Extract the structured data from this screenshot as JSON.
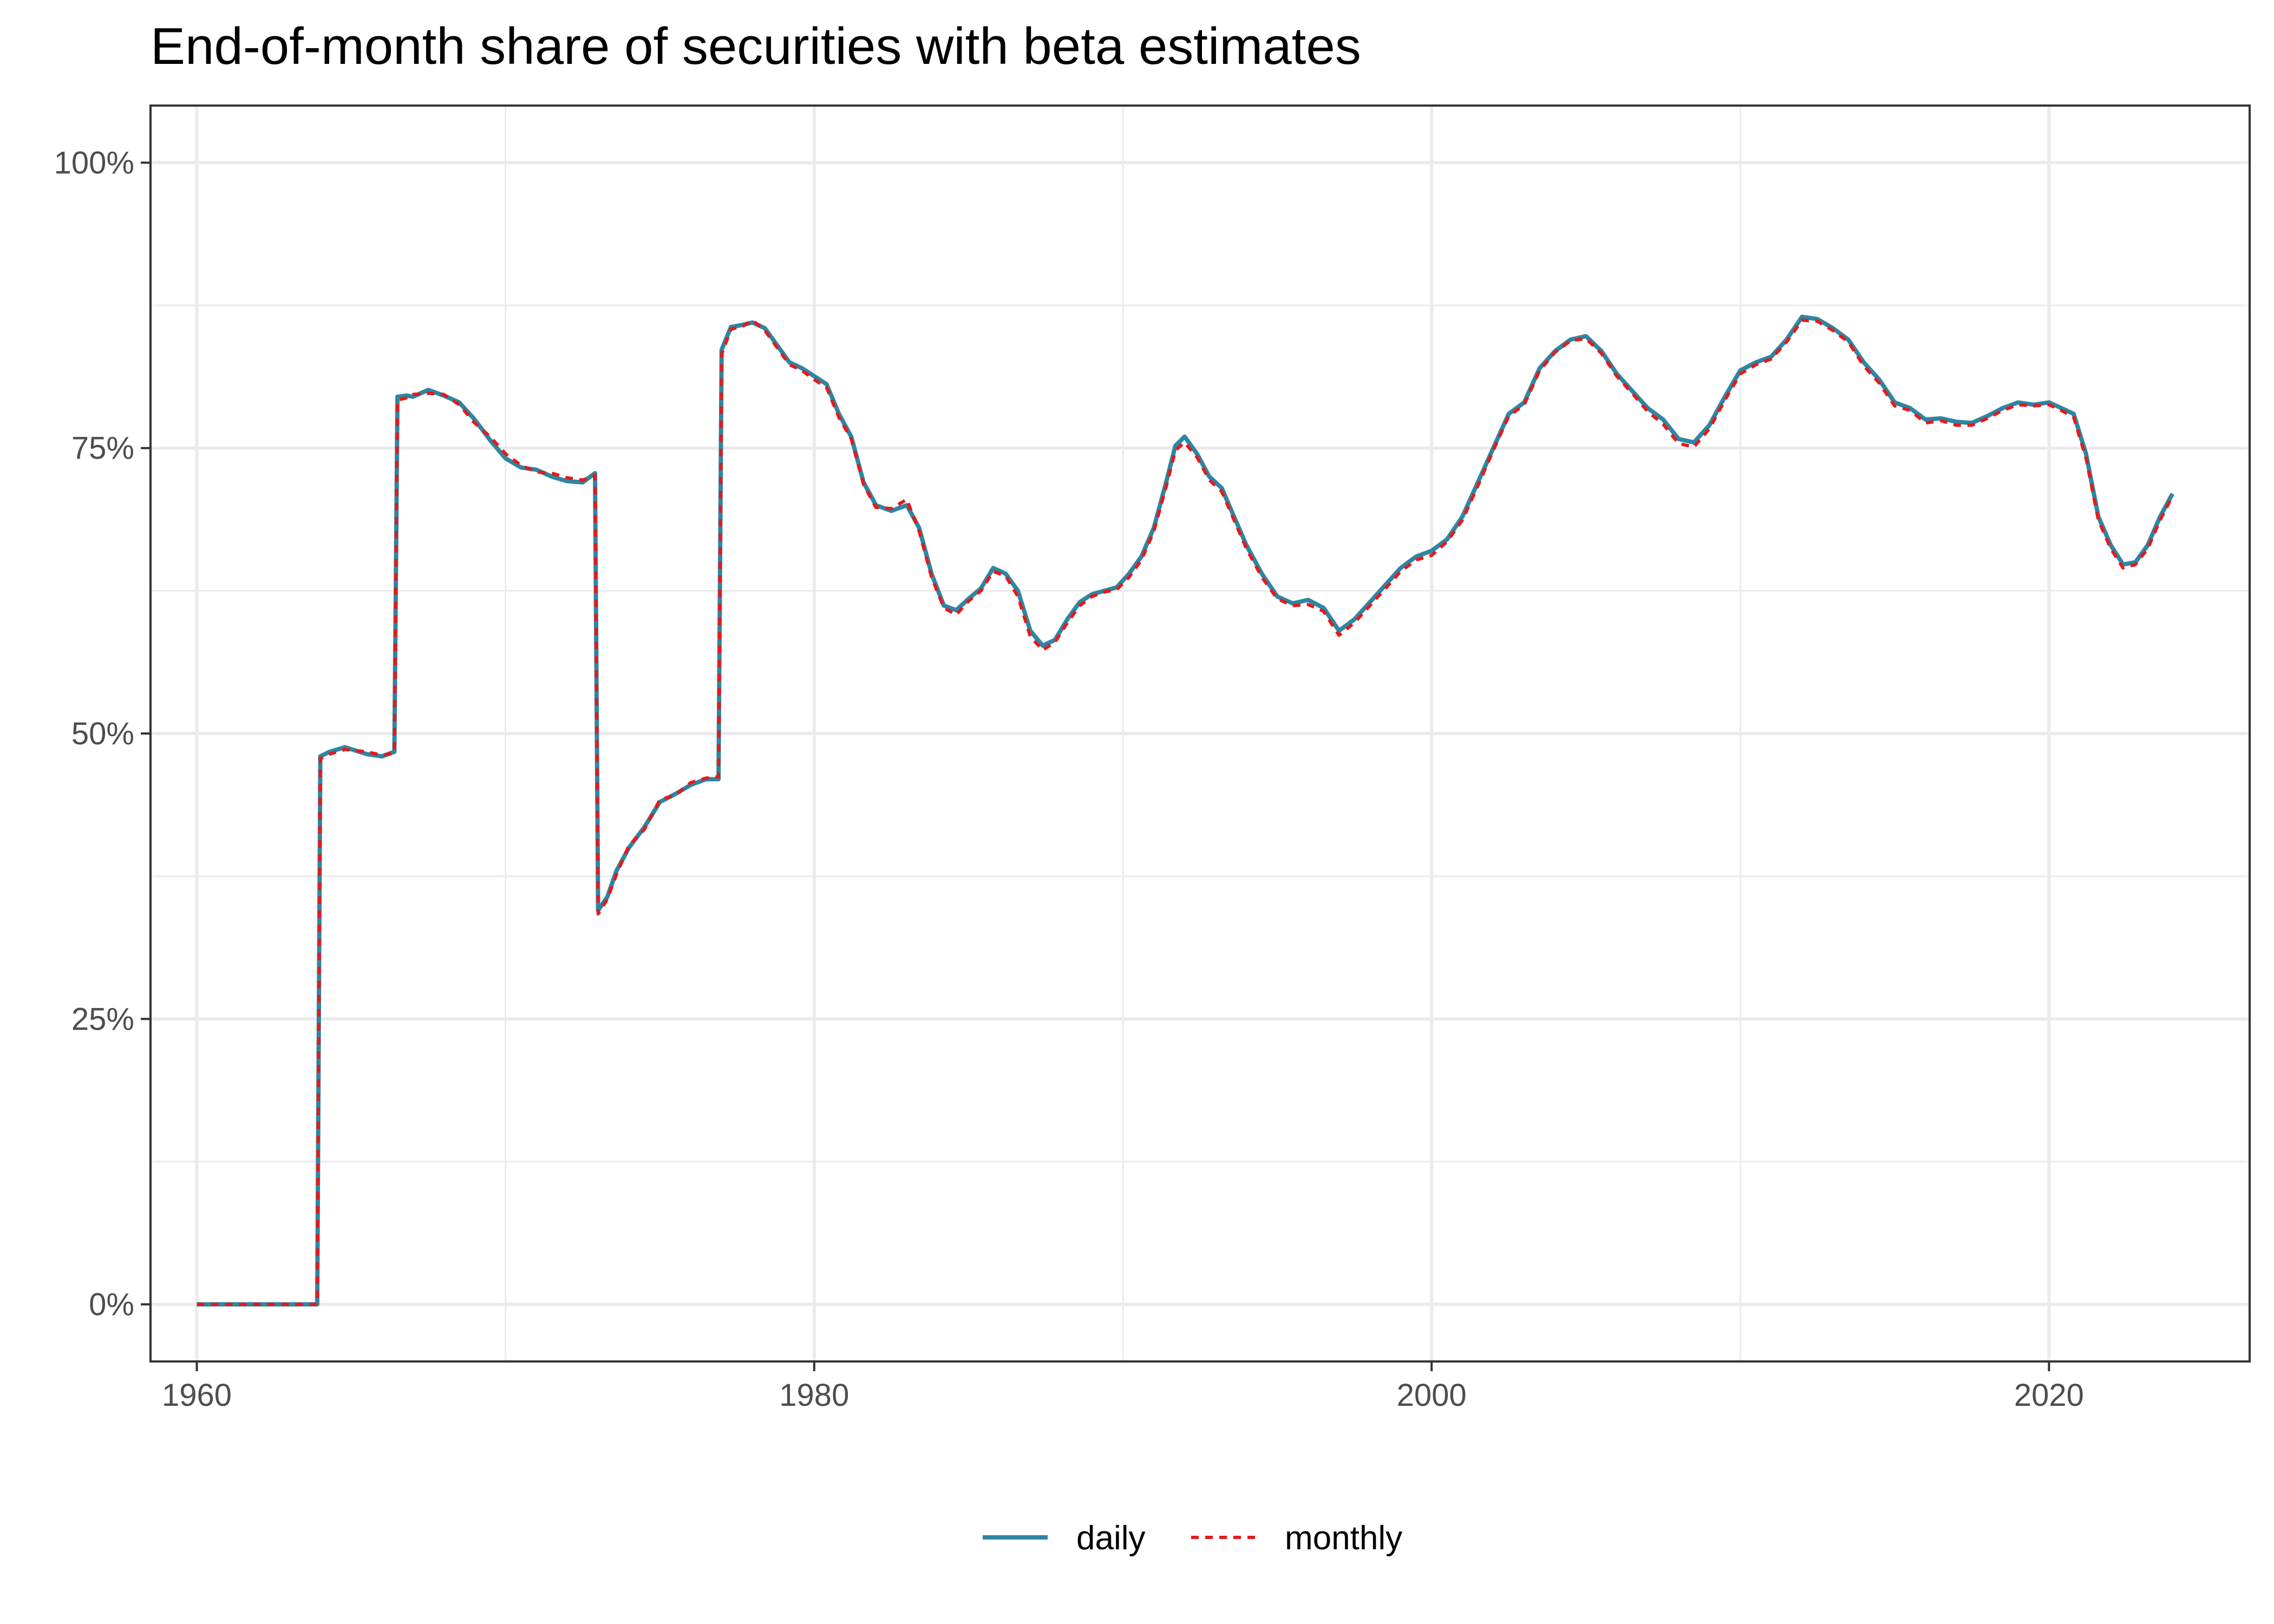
{
  "chart_data": {
    "type": "line",
    "title": "End-of-month share of securities with beta estimates",
    "xlabel": "",
    "ylabel": "",
    "xlim": [
      1958.5,
      2026.5
    ],
    "ylim": [
      -0.05,
      1.05
    ],
    "x_ticks": [
      1960,
      1980,
      2000,
      2020
    ],
    "x_tick_labels": [
      "1960",
      "1980",
      "2000",
      "2020"
    ],
    "x_minor_ticks": [
      1970,
      1990,
      2010
    ],
    "y_ticks": [
      0,
      0.25,
      0.5,
      0.75,
      1.0
    ],
    "y_tick_labels": [
      "0%",
      "25%",
      "50%",
      "75%",
      "100%"
    ],
    "y_minor_ticks": [
      0.125,
      0.375,
      0.625,
      0.875
    ],
    "grid": true,
    "legend_position": "bottom",
    "series": [
      {
        "name": "daily",
        "color": "#2e86a3",
        "dash": "solid",
        "x": [
          1960.0,
          1963.9,
          1964.0,
          1964.3,
          1964.8,
          1965.5,
          1966.0,
          1966.4,
          1966.5,
          1966.8,
          1967.0,
          1967.5,
          1968.0,
          1968.5,
          1969.0,
          1969.5,
          1970.0,
          1970.5,
          1971.0,
          1971.5,
          1972.0,
          1972.5,
          1972.9,
          1973.0,
          1973.3,
          1973.6,
          1974.0,
          1974.5,
          1975.0,
          1975.5,
          1976.0,
          1976.5,
          1976.9,
          1977.0,
          1977.3,
          1977.7,
          1978.0,
          1978.4,
          1978.8,
          1979.2,
          1979.6,
          1980.0,
          1980.4,
          1980.8,
          1981.2,
          1981.6,
          1982.0,
          1982.5,
          1983.0,
          1983.4,
          1983.8,
          1984.2,
          1984.6,
          1985.0,
          1985.4,
          1985.8,
          1986.2,
          1986.6,
          1987.0,
          1987.4,
          1987.8,
          1988.2,
          1988.6,
          1989.0,
          1989.4,
          1989.8,
          1990.2,
          1990.6,
          1991.0,
          1991.4,
          1991.7,
          1992.0,
          1992.4,
          1992.8,
          1993.2,
          1993.6,
          1994.0,
          1994.5,
          1995.0,
          1995.5,
          1996.0,
          1996.5,
          1997.0,
          1997.5,
          1998.0,
          1998.5,
          1999.0,
          1999.5,
          2000.0,
          2000.5,
          2001.0,
          2001.5,
          2002.0,
          2002.5,
          2003.0,
          2003.5,
          2004.0,
          2004.5,
          2005.0,
          2005.5,
          2006.0,
          2006.5,
          2007.0,
          2007.5,
          2008.0,
          2008.5,
          2009.0,
          2009.5,
          2010.0,
          2010.5,
          2011.0,
          2011.5,
          2012.0,
          2012.5,
          2013.0,
          2013.5,
          2014.0,
          2014.5,
          2015.0,
          2015.5,
          2016.0,
          2016.5,
          2017.0,
          2017.5,
          2018.0,
          2018.5,
          2019.0,
          2019.5,
          2020.0,
          2020.4,
          2020.8,
          2021.2,
          2021.6,
          2022.0,
          2022.4,
          2022.8,
          2023.2,
          2023.6,
          2024.0
        ],
        "y": [
          0.0,
          0.0,
          0.48,
          0.484,
          0.488,
          0.482,
          0.48,
          0.484,
          0.795,
          0.796,
          0.795,
          0.801,
          0.796,
          0.79,
          0.775,
          0.757,
          0.741,
          0.733,
          0.731,
          0.725,
          0.721,
          0.72,
          0.728,
          0.345,
          0.357,
          0.38,
          0.4,
          0.418,
          0.44,
          0.447,
          0.455,
          0.46,
          0.46,
          0.836,
          0.856,
          0.858,
          0.86,
          0.855,
          0.84,
          0.825,
          0.82,
          0.813,
          0.806,
          0.78,
          0.76,
          0.72,
          0.7,
          0.695,
          0.7,
          0.68,
          0.64,
          0.612,
          0.608,
          0.618,
          0.627,
          0.645,
          0.64,
          0.625,
          0.59,
          0.577,
          0.582,
          0.6,
          0.615,
          0.622,
          0.625,
          0.628,
          0.64,
          0.655,
          0.68,
          0.72,
          0.752,
          0.76,
          0.745,
          0.725,
          0.715,
          0.69,
          0.665,
          0.64,
          0.62,
          0.614,
          0.617,
          0.61,
          0.59,
          0.6,
          0.615,
          0.63,
          0.645,
          0.655,
          0.66,
          0.67,
          0.69,
          0.72,
          0.75,
          0.78,
          0.79,
          0.82,
          0.835,
          0.845,
          0.848,
          0.835,
          0.815,
          0.8,
          0.785,
          0.775,
          0.758,
          0.755,
          0.77,
          0.795,
          0.818,
          0.825,
          0.83,
          0.845,
          0.865,
          0.863,
          0.855,
          0.845,
          0.825,
          0.81,
          0.79,
          0.785,
          0.775,
          0.776,
          0.773,
          0.772,
          0.778,
          0.785,
          0.79,
          0.788,
          0.79,
          0.785,
          0.78,
          0.745,
          0.69,
          0.665,
          0.648,
          0.65,
          0.665,
          0.69,
          0.71
        ]
      },
      {
        "name": "monthly",
        "color": "#e41a1c",
        "dash": "dashed",
        "x": [
          1960.0,
          1963.9,
          1964.0,
          1964.3,
          1964.8,
          1965.5,
          1966.0,
          1966.4,
          1966.5,
          1966.8,
          1967.0,
          1967.5,
          1968.0,
          1968.5,
          1969.0,
          1969.5,
          1970.0,
          1970.5,
          1971.0,
          1971.5,
          1972.0,
          1972.5,
          1972.9,
          1973.0,
          1973.3,
          1973.6,
          1974.0,
          1974.5,
          1975.0,
          1975.5,
          1976.0,
          1976.5,
          1976.9,
          1977.0,
          1977.3,
          1977.7,
          1978.0,
          1978.4,
          1978.8,
          1979.2,
          1979.6,
          1980.0,
          1980.4,
          1980.8,
          1981.2,
          1981.6,
          1982.0,
          1982.5,
          1983.0,
          1983.4,
          1983.8,
          1984.2,
          1984.6,
          1985.0,
          1985.4,
          1985.8,
          1986.2,
          1986.6,
          1987.0,
          1987.4,
          1987.8,
          1988.2,
          1988.6,
          1989.0,
          1989.4,
          1989.8,
          1990.2,
          1990.6,
          1991.0,
          1991.4,
          1991.7,
          1992.0,
          1992.4,
          1992.8,
          1993.2,
          1993.6,
          1994.0,
          1994.5,
          1995.0,
          1995.5,
          1996.0,
          1996.5,
          1997.0,
          1997.5,
          1998.0,
          1998.5,
          1999.0,
          1999.5,
          2000.0,
          2000.5,
          2001.0,
          2001.5,
          2002.0,
          2002.5,
          2003.0,
          2003.5,
          2004.0,
          2004.5,
          2005.0,
          2005.5,
          2006.0,
          2006.5,
          2007.0,
          2007.5,
          2008.0,
          2008.5,
          2009.0,
          2009.5,
          2010.0,
          2010.5,
          2011.0,
          2011.5,
          2012.0,
          2012.5,
          2013.0,
          2013.5,
          2014.0,
          2014.5,
          2015.0,
          2015.5,
          2016.0,
          2016.5,
          2017.0,
          2017.5,
          2018.0,
          2018.5,
          2019.0,
          2019.5,
          2020.0,
          2020.4,
          2020.8,
          2021.2,
          2021.6,
          2022.0,
          2022.4,
          2022.8,
          2023.2,
          2023.6,
          2024.0
        ],
        "y": [
          0.0,
          0.0,
          0.478,
          0.482,
          0.486,
          0.484,
          0.481,
          0.483,
          0.792,
          0.794,
          0.797,
          0.798,
          0.797,
          0.788,
          0.772,
          0.76,
          0.745,
          0.735,
          0.729,
          0.728,
          0.724,
          0.722,
          0.726,
          0.342,
          0.355,
          0.377,
          0.402,
          0.416,
          0.442,
          0.446,
          0.457,
          0.461,
          0.462,
          0.832,
          0.854,
          0.857,
          0.862,
          0.853,
          0.838,
          0.823,
          0.818,
          0.81,
          0.803,
          0.777,
          0.758,
          0.718,
          0.698,
          0.697,
          0.705,
          0.677,
          0.637,
          0.61,
          0.604,
          0.616,
          0.625,
          0.642,
          0.638,
          0.62,
          0.585,
          0.573,
          0.58,
          0.597,
          0.612,
          0.62,
          0.624,
          0.626,
          0.637,
          0.652,
          0.677,
          0.716,
          0.748,
          0.755,
          0.742,
          0.722,
          0.712,
          0.687,
          0.662,
          0.637,
          0.618,
          0.612,
          0.613,
          0.607,
          0.586,
          0.597,
          0.612,
          0.627,
          0.642,
          0.652,
          0.656,
          0.668,
          0.687,
          0.717,
          0.748,
          0.778,
          0.788,
          0.818,
          0.834,
          0.844,
          0.846,
          0.833,
          0.813,
          0.798,
          0.782,
          0.771,
          0.754,
          0.751,
          0.767,
          0.792,
          0.815,
          0.823,
          0.828,
          0.843,
          0.862,
          0.861,
          0.853,
          0.843,
          0.822,
          0.807,
          0.787,
          0.783,
          0.772,
          0.774,
          0.77,
          0.77,
          0.776,
          0.783,
          0.788,
          0.787,
          0.788,
          0.783,
          0.777,
          0.741,
          0.687,
          0.662,
          0.645,
          0.648,
          0.662,
          0.687,
          0.708
        ]
      }
    ]
  }
}
